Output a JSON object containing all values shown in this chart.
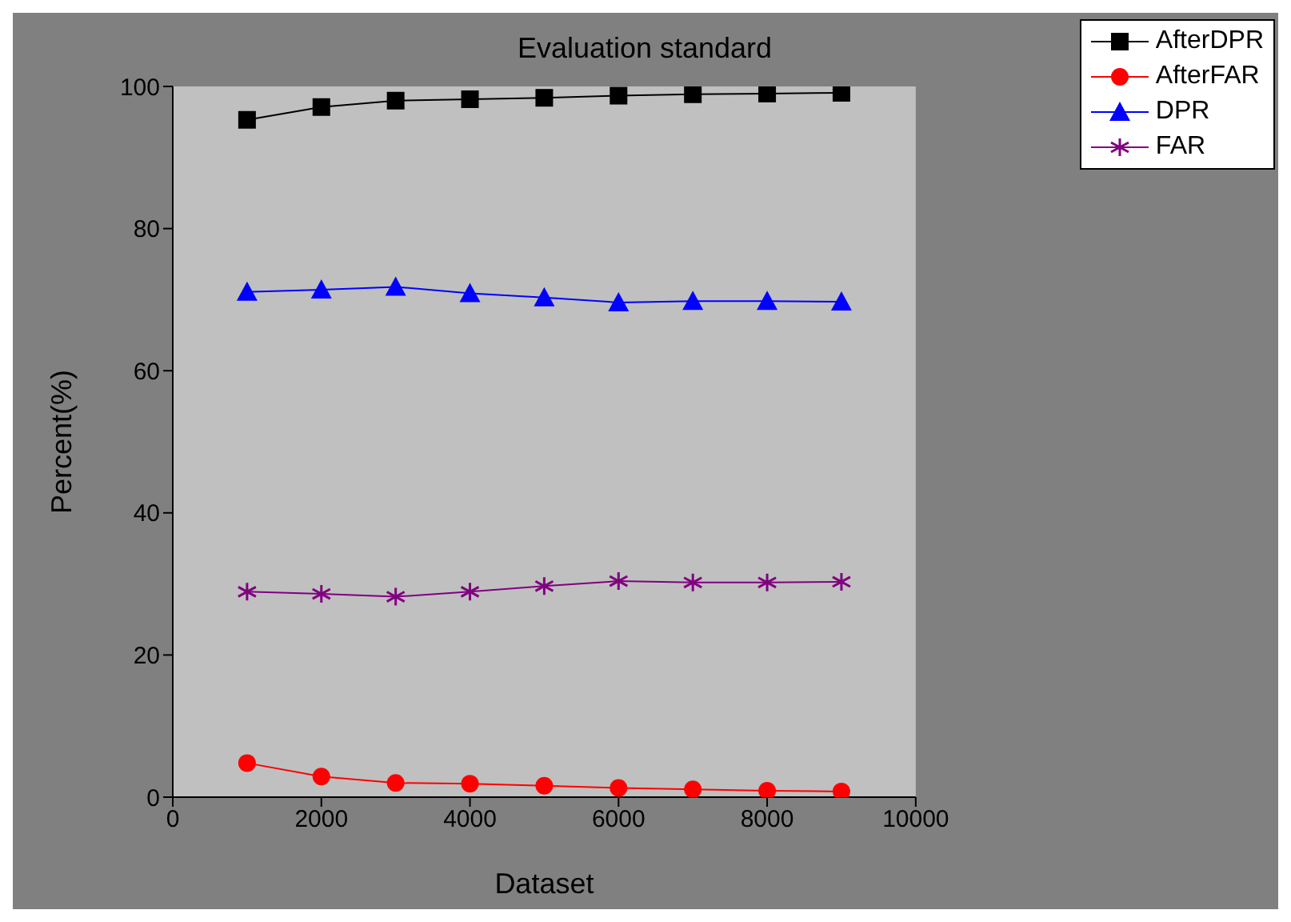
{
  "chart_data": {
    "type": "line",
    "title": "Evaluation standard",
    "xlabel": "Dataset",
    "ylabel": "Percent(%)",
    "x": [
      1000,
      2000,
      3000,
      4000,
      5000,
      6000,
      7000,
      8000,
      9000
    ],
    "series": [
      {
        "name": "AfterDPR",
        "color": "#000000",
        "marker": "square",
        "values": [
          95.3,
          97.1,
          98.0,
          98.2,
          98.4,
          98.7,
          98.9,
          99.0,
          99.1
        ]
      },
      {
        "name": "AfterFAR",
        "color": "#ff0000",
        "marker": "circle",
        "values": [
          4.8,
          2.9,
          2.0,
          1.9,
          1.6,
          1.3,
          1.1,
          0.9,
          0.8
        ]
      },
      {
        "name": "DPR",
        "color": "#0000ff",
        "marker": "triangle",
        "values": [
          71.1,
          71.4,
          71.8,
          70.9,
          70.3,
          69.6,
          69.8,
          69.8,
          69.7
        ]
      },
      {
        "name": "FAR",
        "color": "#800080",
        "marker": "cross",
        "values": [
          28.9,
          28.6,
          28.2,
          28.9,
          29.7,
          30.4,
          30.2,
          30.2,
          30.3
        ]
      }
    ],
    "xlim": [
      0,
      10000
    ],
    "xticks": [
      0,
      2000,
      4000,
      6000,
      8000,
      10000
    ],
    "ylim": [
      0,
      100
    ],
    "yticks": [
      0,
      20,
      40,
      60,
      80,
      100
    ],
    "grid": false,
    "legend": "top right",
    "line_style": "solid"
  }
}
